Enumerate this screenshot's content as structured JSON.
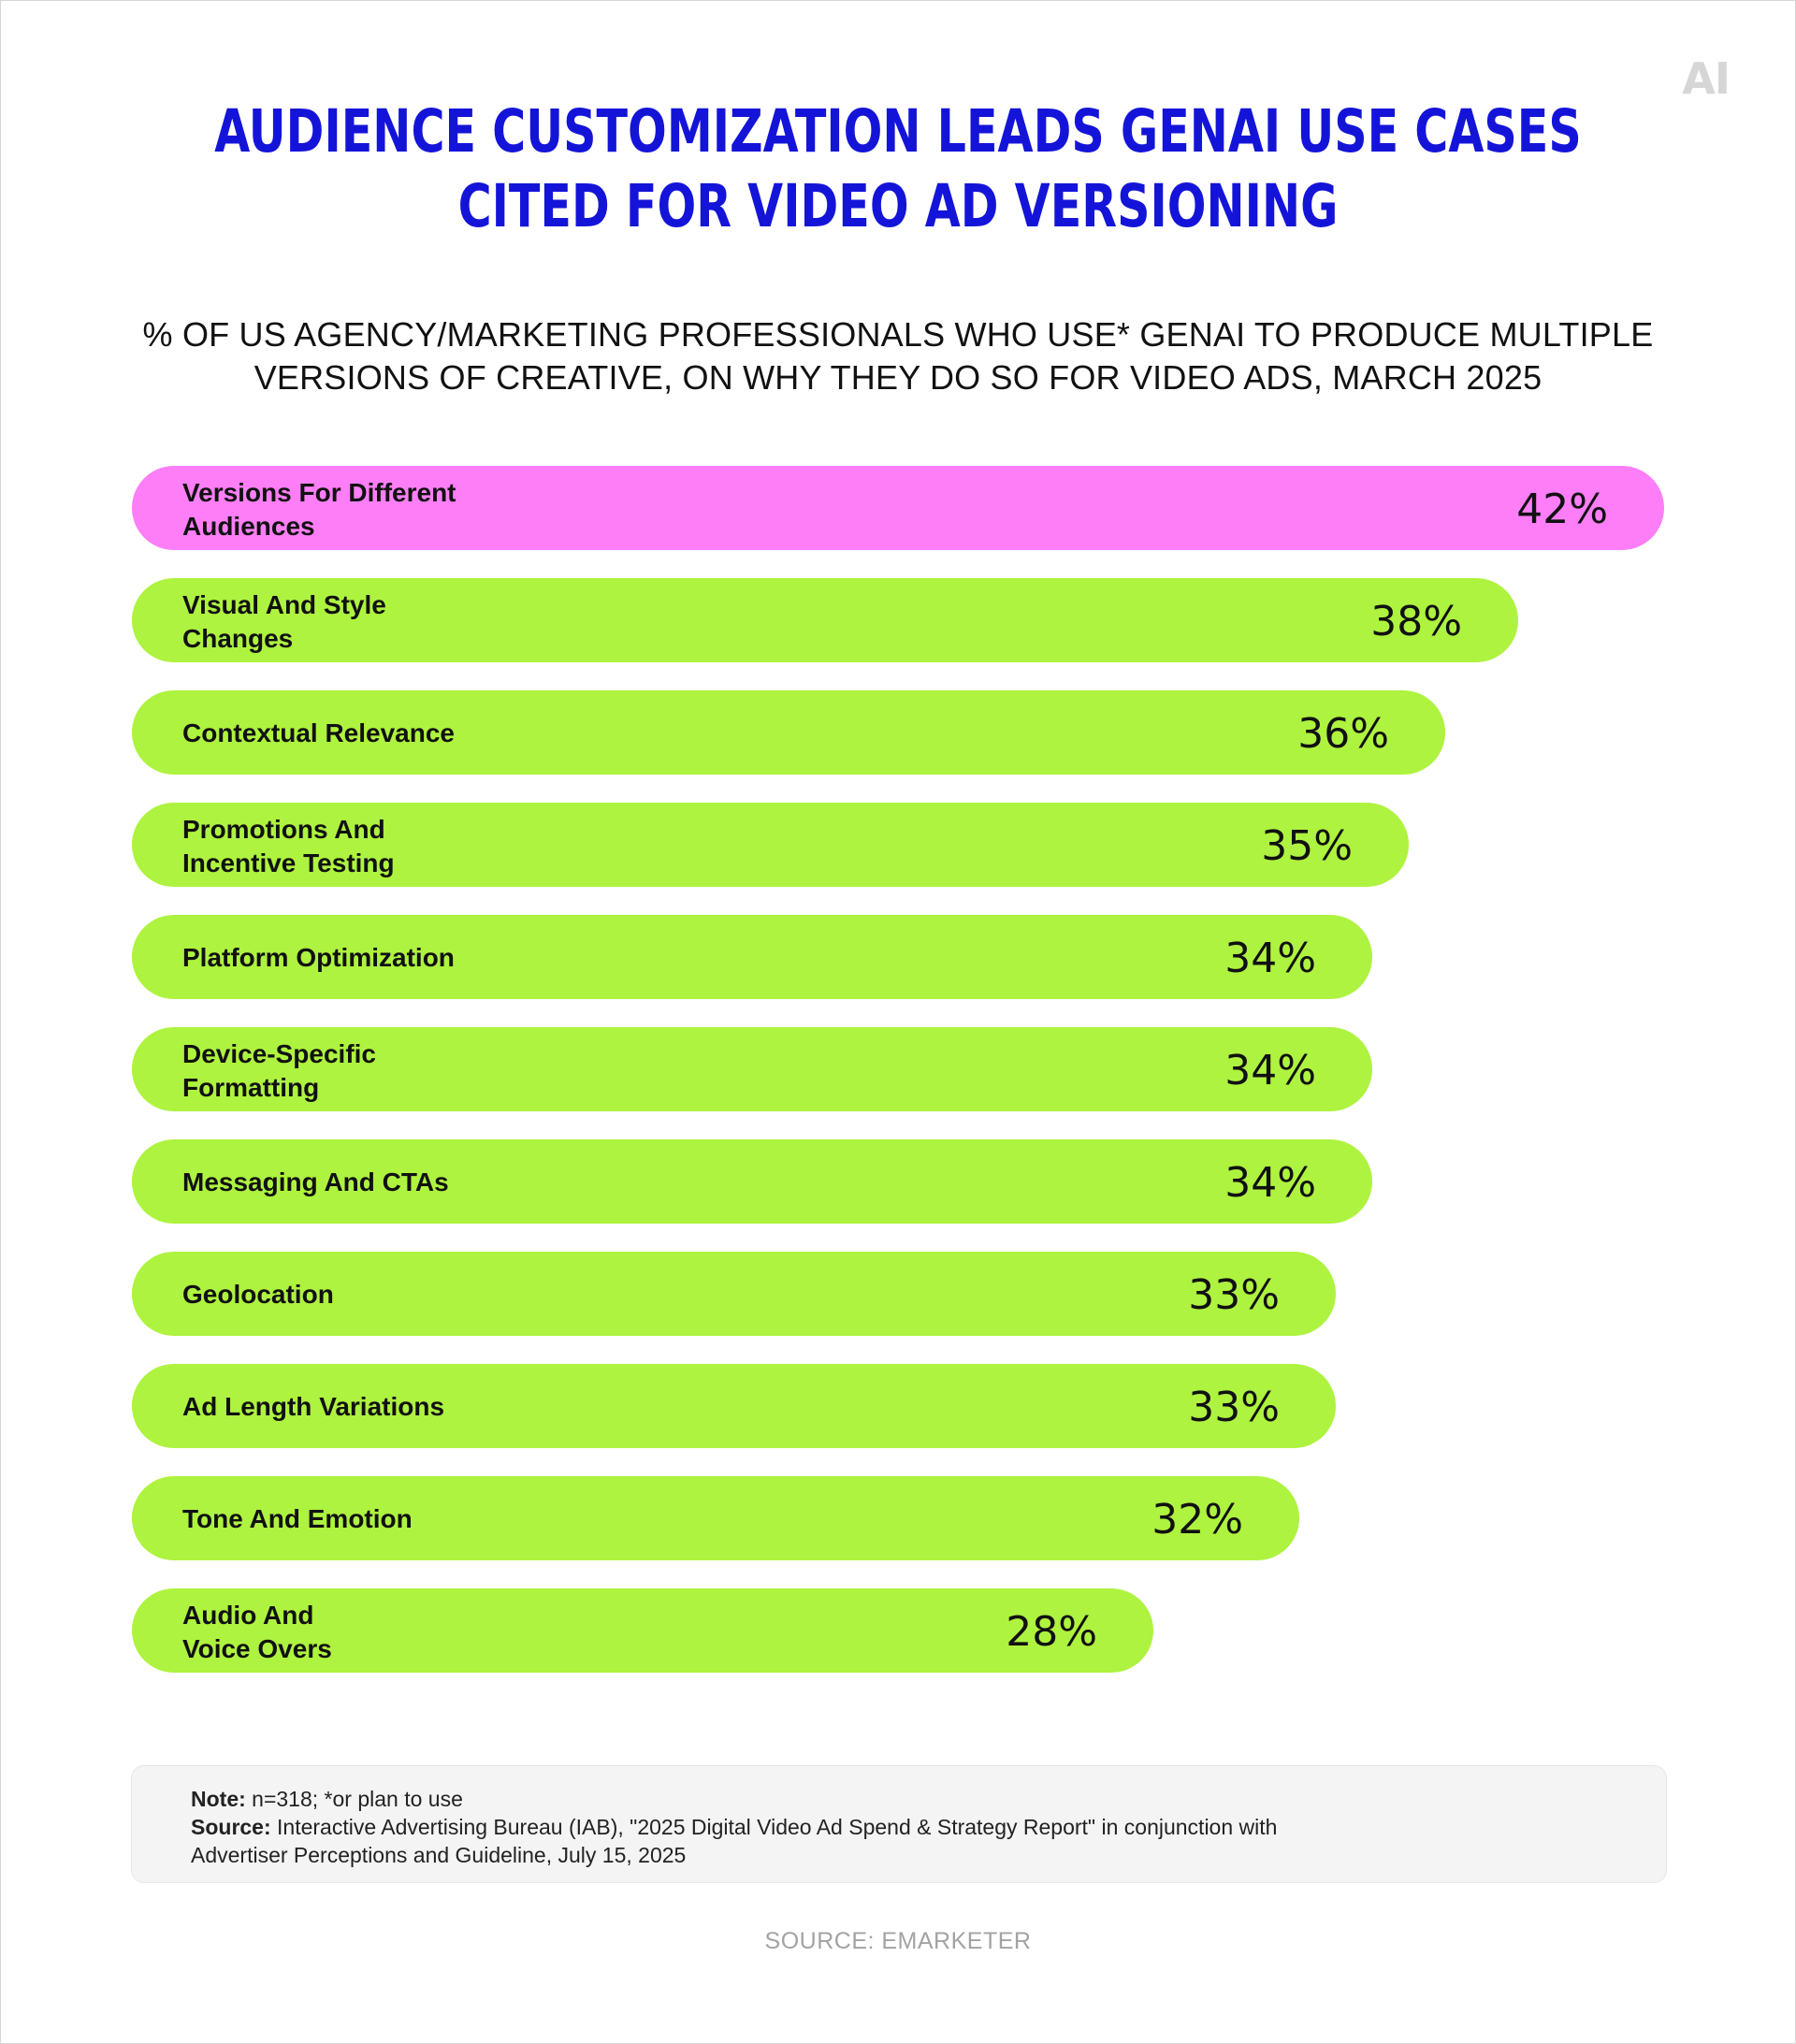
{
  "logo": "AI",
  "title_lines": [
    "AUDIENCE CUSTOMIZATION LEADS GENAI USE CASES",
    "CITED FOR VIDEO AD VERSIONING"
  ],
  "subtitle_lines": [
    "% OF US AGENCY/MARKETING PROFESSIONALS WHO USE* GENAI TO PRODUCE MULTIPLE",
    "VERSIONS OF CREATIVE, ON WHY THEY DO SO FOR VIDEO ADS, MARCH 2025"
  ],
  "chart_data": {
    "type": "bar",
    "orientation": "horizontal",
    "categories": [
      [
        "Versions For Different",
        "Audiences"
      ],
      [
        "Visual And Style",
        "Changes"
      ],
      [
        "Contextual Relevance"
      ],
      [
        "Promotions And",
        "Incentive Testing"
      ],
      [
        "Platform Optimization"
      ],
      [
        "Device-Specific",
        "Formatting"
      ],
      [
        "Messaging And CTAs"
      ],
      [
        "Geolocation"
      ],
      [
        "Ad Length Variations"
      ],
      [
        "Tone And Emotion"
      ],
      [
        "Audio And",
        "Voice Overs"
      ]
    ],
    "values": [
      42,
      38,
      36,
      35,
      34,
      34,
      34,
      33,
      33,
      32,
      28
    ],
    "value_labels": [
      "42%",
      "38%",
      "36%",
      "35%",
      "34%",
      "34%",
      "34%",
      "33%",
      "33%",
      "32%",
      "28%"
    ],
    "highlight_index": 0,
    "highlight_color": "#fd7ef7",
    "bar_color": "#aef33f",
    "title": "AUDIENCE CUSTOMIZATION LEADS GENAI USE CASES CITED FOR VIDEO AD VERSIONING",
    "grid": false,
    "legend": "none"
  },
  "note": {
    "note_label": "Note:",
    "note_text": " n=318; *or plan to use",
    "source_label": "Source:",
    "source_line1": " Interactive Advertising Bureau (IAB), \"2025 Digital Video Ad Spend & Strategy Report\" in conjunction with",
    "source_line2": "Advertiser Perceptions and Guideline, July 15, 2025"
  },
  "footer": "SOURCE: EMARKETER"
}
